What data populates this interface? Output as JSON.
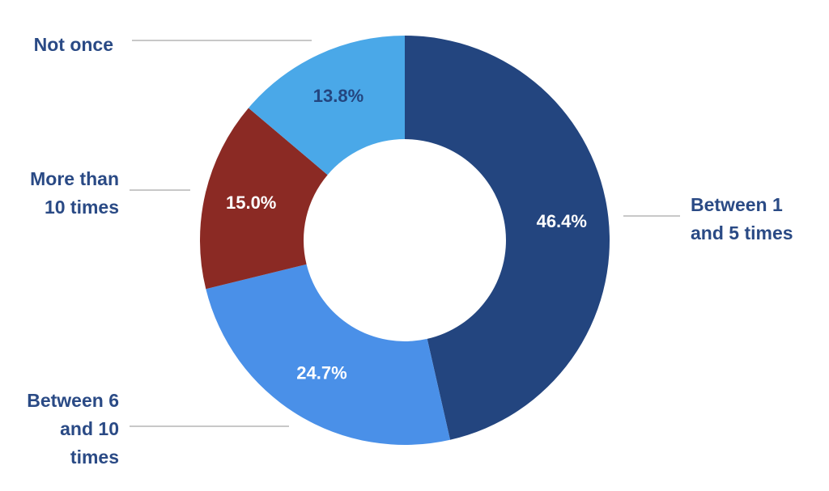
{
  "chart_data": {
    "type": "donut",
    "categories": [
      "Between 1 and 5 times",
      "Between 6 and 10 times",
      "More than 10 times",
      "Not once"
    ],
    "values": [
      46.4,
      24.7,
      15.0,
      13.8
    ],
    "value_labels": [
      "46.4%",
      "24.7%",
      "15.0%",
      "13.8%"
    ],
    "colors": [
      "#23457f",
      "#4a90e8",
      "#8b2a24",
      "#4aa8e8"
    ]
  }
}
